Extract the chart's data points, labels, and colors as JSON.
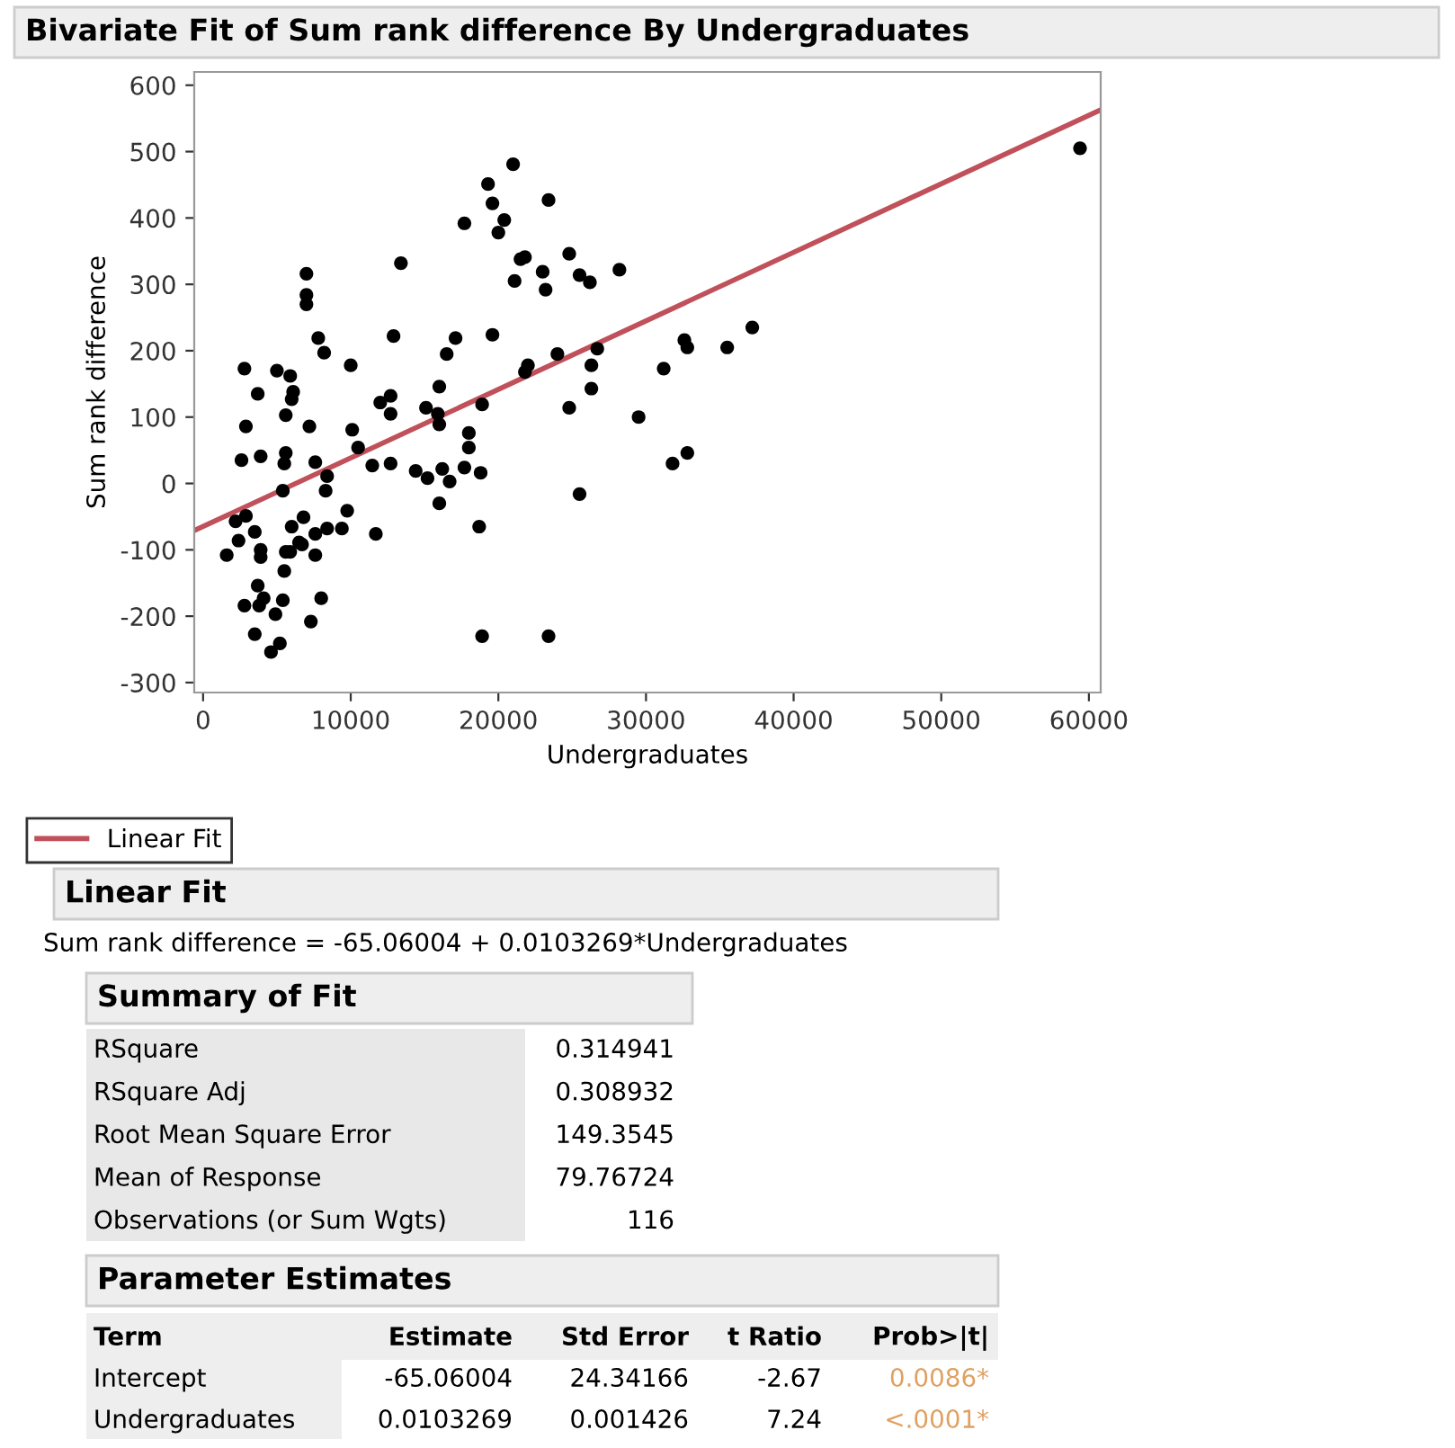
{
  "chart_data": {
    "type": "scatter",
    "title": "Bivariate Fit of Sum rank difference By Undergraduates",
    "xlabel": "Undergraduates",
    "ylabel": "Sum rank difference",
    "xlim": [
      -600,
      60800
    ],
    "ylim": [
      -315,
      620
    ],
    "xticks": [
      0,
      10000,
      20000,
      30000,
      40000,
      50000,
      60000
    ],
    "yticks": [
      -300,
      -200,
      -100,
      0,
      100,
      200,
      300,
      400,
      500,
      600
    ],
    "grid": false,
    "legend": "bottom left",
    "marker": "circle",
    "series": [
      {
        "color": "#000000",
        "x": [
          2800,
          5000,
          5900,
          3700,
          6100,
          6000,
          5600,
          2900,
          7200,
          2600,
          3900,
          5600,
          5500,
          7600,
          8400,
          5400,
          8300,
          2200,
          2900,
          3500,
          2400,
          1600,
          3900,
          3900,
          5600,
          5900,
          6000,
          6800,
          6500,
          6700,
          7600,
          8400,
          9400,
          7600,
          5500,
          3700,
          4100,
          2800,
          3800,
          5400,
          4900,
          8000,
          3500,
          7300,
          5200,
          4600,
          7000,
          7000,
          7000,
          7800,
          8200,
          10000,
          10100,
          10500,
          9760,
          11460,
          11700,
          21000,
          19300,
          23400,
          19600,
          20400,
          17700,
          20000,
          13400,
          21500,
          21800,
          24800,
          23000,
          21100,
          25500,
          23200,
          26200,
          12900,
          17100,
          19600,
          16500,
          24000,
          22000,
          21800,
          26300,
          26300,
          16000,
          12000,
          12700,
          12700,
          15100,
          15900,
          16000,
          18900,
          24800,
          18000,
          18000,
          18800,
          12700,
          14400,
          15200,
          16200,
          16700,
          17700,
          16000,
          25500,
          18700,
          18900,
          23400,
          28200,
          26700,
          29500,
          31200,
          32600,
          32800,
          35500,
          37200,
          31800,
          32800,
          59400
        ],
        "values": [
          173,
          170,
          162,
          135,
          138,
          127,
          103,
          86,
          86,
          35,
          41,
          46,
          30,
          32,
          11,
          -11,
          -11,
          -57,
          -49,
          -73,
          -86,
          -108,
          -100,
          -111,
          -103,
          -103,
          -65,
          -51,
          -89,
          -92,
          -76,
          -68,
          -68,
          -108,
          -132,
          -154,
          -173,
          -184,
          -184,
          -176,
          -197,
          -173,
          -227,
          -208,
          -241,
          -254,
          316,
          284,
          270,
          219,
          197,
          178,
          81,
          54,
          -41,
          27,
          -76,
          481,
          451,
          427,
          422,
          397,
          392,
          378,
          332,
          338,
          341,
          346,
          319,
          305,
          314,
          292,
          303,
          222,
          219,
          224,
          195,
          195,
          178,
          168,
          178,
          143,
          146,
          122,
          132,
          105,
          114,
          105,
          89,
          119,
          114,
          76,
          54,
          16,
          30,
          19,
          8,
          22,
          3,
          24,
          -30,
          -16,
          -65,
          -230,
          -230,
          322,
          203,
          100,
          173,
          216,
          205,
          205,
          235,
          30,
          46,
          505
        ]
      },
      {
        "type": "line",
        "name": "Linear Fit",
        "marker": "none",
        "color": "#c0505a",
        "x": [
          -600,
          60800
        ],
        "values": [
          -71,
          563
        ]
      }
    ],
    "annotations": [
      "Linear Fit",
      "Sum rank difference = -65.06004 + 0.0103269*Undergraduates",
      "Summary of Fit",
      "RSquare",
      "0.314941",
      "RSquare Adj",
      "0.308932",
      "Root Mean Square Error",
      "149.3545",
      "Mean of Response",
      "79.76724",
      "Observations (or Sum Wgts)",
      "116",
      "Parameter Estimates",
      "Term",
      "Estimate",
      "Std Error",
      "t Ratio",
      "Prob>|t|",
      "Intercept",
      "-65.06004",
      "24.34166",
      "-2.67",
      "0.0086*",
      "Undergraduates",
      "0.0103269",
      "0.001426",
      "7.24",
      "<.0001*"
    ]
  }
}
